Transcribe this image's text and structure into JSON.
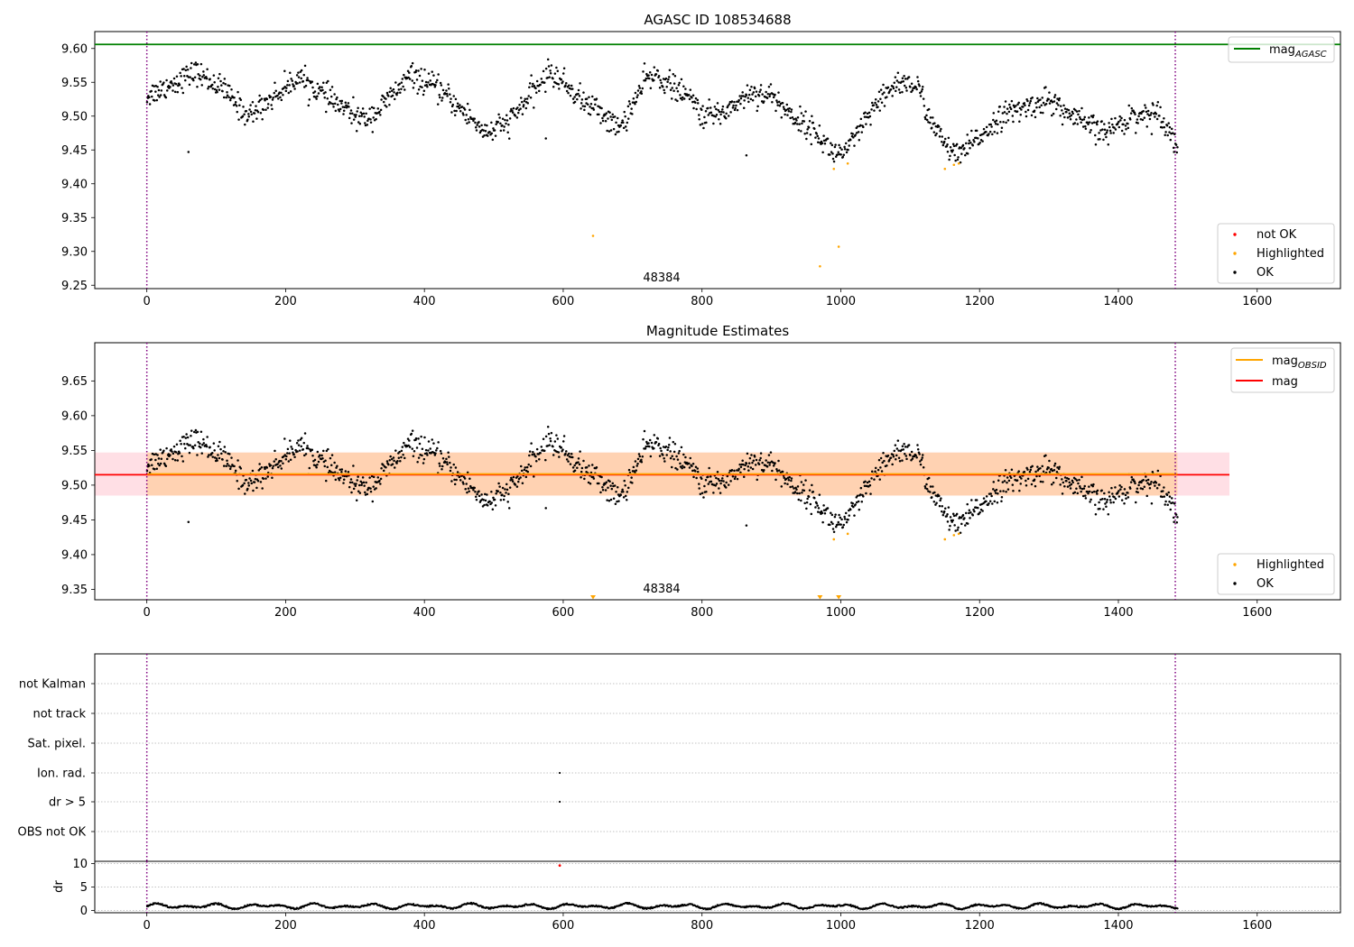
{
  "colors": {
    "ok": "#000000",
    "highlighted": "#ffa500",
    "not_ok": "#ff0000",
    "mag_agasc": "#008000",
    "mag_obsid": "#ffa500",
    "mag": "#ff0000",
    "band_obsid": "#ffa500",
    "band_mag": "#ffc0cb",
    "interval_line": "#800080",
    "grid": "#b0b0b0"
  },
  "chart_data": [
    {
      "type": "scatter",
      "title": "AGASC ID 108534688",
      "xlim": [
        -75,
        1720
      ],
      "ylim": [
        9.245,
        9.625
      ],
      "xticks": [
        0,
        200,
        400,
        600,
        800,
        1000,
        1200,
        1400,
        1600
      ],
      "yticks": [
        9.25,
        9.3,
        9.35,
        9.4,
        9.45,
        9.5,
        9.55,
        9.6
      ],
      "hlines": [
        {
          "name": "mag_AGASC",
          "y": 9.606,
          "x": [
            -75,
            1720
          ]
        }
      ],
      "vlines": [
        0,
        1482
      ],
      "annotation": {
        "text": "48384",
        "x": 741,
        "y": 9.255
      },
      "legends": [
        {
          "placement": "upper-right",
          "entries": [
            {
              "label": "mag",
              "subscript": "AGASC",
              "kind": "line"
            }
          ]
        },
        {
          "placement": "lower-right",
          "entries": [
            {
              "label": "not OK",
              "kind": "point-red"
            },
            {
              "label": "Highlighted",
              "kind": "point-orange"
            },
            {
              "label": "OK",
              "kind": "point-black"
            }
          ]
        }
      ],
      "highlighted_points": [
        [
          643,
          9.323
        ],
        [
          970,
          9.278
        ],
        [
          990,
          9.422
        ],
        [
          997,
          9.307
        ],
        [
          1010,
          9.43
        ],
        [
          1150,
          9.422
        ],
        [
          1163,
          9.428
        ],
        [
          1170,
          9.43
        ]
      ],
      "outlier_points": [
        [
          60,
          9.447
        ],
        [
          575,
          9.467
        ],
        [
          864,
          9.442
        ]
      ],
      "series": [
        {
          "name": "OK",
          "x_range": [
            0,
            1485
          ],
          "trend_knots": [
            [
              0,
              9.53
            ],
            [
              60,
              9.56
            ],
            [
              70,
              9.565
            ],
            [
              110,
              9.54
            ],
            [
              145,
              9.5
            ],
            [
              210,
              9.55
            ],
            [
              215,
              9.56
            ],
            [
              285,
              9.51
            ],
            [
              310,
              9.495
            ],
            [
              330,
              9.505
            ],
            [
              380,
              9.56
            ],
            [
              420,
              9.54
            ],
            [
              490,
              9.475
            ],
            [
              520,
              9.49
            ],
            [
              580,
              9.565
            ],
            [
              600,
              9.55
            ],
            [
              630,
              9.52
            ],
            [
              650,
              9.51
            ],
            [
              680,
              9.48
            ],
            [
              720,
              9.555
            ],
            [
              735,
              9.56
            ],
            [
              790,
              9.52
            ],
            [
              800,
              9.5
            ],
            [
              830,
              9.505
            ],
            [
              870,
              9.535
            ],
            [
              900,
              9.53
            ],
            [
              930,
              9.5
            ],
            [
              960,
              9.48
            ],
            [
              990,
              9.445
            ],
            [
              1010,
              9.45
            ],
            [
              1040,
              9.5
            ],
            [
              1080,
              9.55
            ],
            [
              1110,
              9.545
            ],
            [
              1135,
              9.48
            ],
            [
              1165,
              9.44
            ],
            [
              1180,
              9.45
            ],
            [
              1230,
              9.5
            ],
            [
              1260,
              9.51
            ],
            [
              1300,
              9.525
            ],
            [
              1330,
              9.5
            ],
            [
              1380,
              9.475
            ],
            [
              1420,
              9.5
            ],
            [
              1460,
              9.505
            ],
            [
              1485,
              9.455
            ]
          ]
        }
      ]
    },
    {
      "type": "scatter",
      "title": "Magnitude Estimates",
      "xlim": [
        -75,
        1720
      ],
      "ylim": [
        9.335,
        9.705
      ],
      "xticks": [
        0,
        200,
        400,
        600,
        800,
        1000,
        1200,
        1400,
        1600
      ],
      "yticks": [
        9.35,
        9.4,
        9.45,
        9.5,
        9.55,
        9.6,
        9.65
      ],
      "hlines": [
        {
          "name": "mag_OBSID",
          "y": 9.516,
          "x": [
            0,
            1485
          ],
          "band": [
            9.485,
            9.547
          ]
        },
        {
          "name": "mag",
          "y": 9.515,
          "x": [
            -75,
            1560
          ],
          "band": [
            9.485,
            9.547
          ]
        }
      ],
      "vlines": [
        0,
        1482
      ],
      "annotation": {
        "text": "48384",
        "x": 741,
        "y": 9.345
      },
      "legends": [
        {
          "placement": "upper-right",
          "entries": [
            {
              "label": "mag",
              "subscript": "OBSID",
              "kind": "line-orange"
            },
            {
              "label": "mag",
              "kind": "line-red"
            }
          ]
        },
        {
          "placement": "lower-right",
          "entries": [
            {
              "label": "Highlighted",
              "kind": "point-orange"
            },
            {
              "label": "OK",
              "kind": "point-black"
            }
          ]
        }
      ],
      "offscale_markers": [
        643,
        970,
        997
      ],
      "note": "same OK points and highlighted points as the first panel"
    },
    {
      "type": "scatter",
      "title": "",
      "xlim": [
        -75,
        1720
      ],
      "flag_rows": [
        "not Kalman",
        "not track",
        "Sat. pixel.",
        "Ion. rad.",
        "dr > 5",
        "OBS not OK"
      ],
      "flag_points": [
        {
          "row": "Ion. rad.",
          "x": 595
        },
        {
          "row": "dr > 5",
          "x": 595
        }
      ],
      "vlines": [
        0,
        1482
      ]
    },
    {
      "type": "scatter",
      "ylabel": "dr",
      "xlim": [
        -75,
        1720
      ],
      "ylim": [
        -0.5,
        10.5
      ],
      "xticks": [
        0,
        200,
        400,
        600,
        800,
        1000,
        1200,
        1400,
        1600
      ],
      "yticks": [
        0,
        5,
        10
      ],
      "vlines": [
        0,
        1482
      ],
      "red_points": [
        [
          595,
          9.6
        ]
      ],
      "series": [
        {
          "name": "dr",
          "x_range": [
            0,
            1485
          ],
          "value_range": [
            0.1,
            2.1
          ]
        }
      ]
    }
  ],
  "texts": {
    "p1_title": "AGASC ID 108534688",
    "p2_title": "Magnitude Estimates",
    "annotation": "48384",
    "leg_mag": "mag",
    "leg_agasc_sub": "AGASC",
    "leg_obsid_sub": "OBSID",
    "leg_not_ok": "not OK",
    "leg_highlighted": "Highlighted",
    "leg_ok": "OK",
    "dr_label": "dr"
  }
}
